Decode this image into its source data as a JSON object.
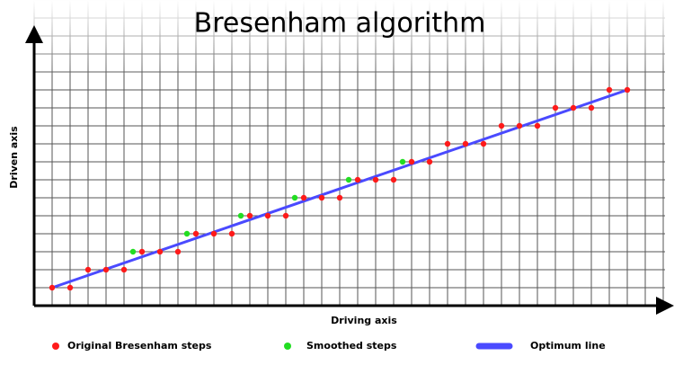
{
  "chart_data": {
    "type": "scatter",
    "title": "Bresenham algorithm",
    "x_label": "Driving axis",
    "y_label": "Driven axis",
    "xlim": [
      -1,
      34.6
    ],
    "ylim": [
      -1,
      14.5
    ],
    "grid": true,
    "series": [
      {
        "name": "Original Bresenham steps",
        "color": "#ff1a1a",
        "mode": "markers",
        "x": [
          0,
          1,
          2,
          3,
          4,
          5,
          6,
          7,
          8,
          9,
          10,
          11,
          12,
          13,
          14,
          15,
          16,
          17,
          18,
          19,
          20,
          21,
          22,
          23,
          24,
          25,
          26,
          27,
          28,
          29,
          30,
          31,
          32
        ],
        "values": [
          0,
          0,
          1,
          1,
          1,
          2,
          2,
          2,
          3,
          3,
          3,
          4,
          4,
          4,
          5,
          5,
          5,
          6,
          6,
          6,
          7,
          7,
          8,
          8,
          8,
          9,
          9,
          9,
          10,
          10,
          10,
          11,
          11
        ]
      },
      {
        "name": "Smoothed steps",
        "color": "#22dd22",
        "mode": "markers",
        "x": [
          4.5,
          7.5,
          10.5,
          13.5,
          16.5,
          19.5
        ],
        "values": [
          2,
          3,
          4,
          5,
          6,
          7
        ]
      },
      {
        "name": "Optimum line",
        "color": "#4a4aff",
        "mode": "line",
        "x": [
          0,
          32
        ],
        "values": [
          0,
          11
        ]
      }
    ]
  }
}
